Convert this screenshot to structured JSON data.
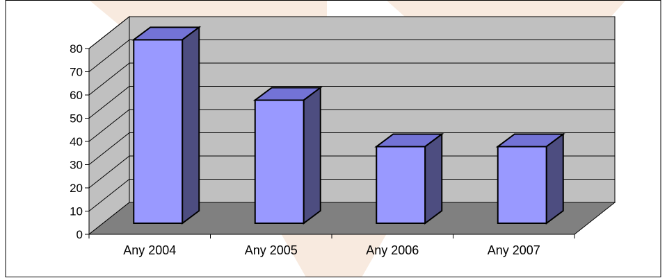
{
  "chart_data": {
    "type": "bar",
    "title": "",
    "xlabel": "",
    "ylabel": "",
    "categories": [
      "Any 2004",
      "Any 2005",
      "Any 2006",
      "Any 2007"
    ],
    "values": [
      79,
      53,
      33,
      33
    ],
    "ylim": [
      0,
      80
    ],
    "yticks": [
      0,
      10,
      20,
      30,
      40,
      50,
      60,
      70,
      80
    ],
    "grid": true,
    "legend": "none",
    "three_d": true,
    "colors": {
      "bar_front": "#9999ff",
      "bar_top": "#7373d6",
      "bar_side": "#4d4d80",
      "back_wall": "#c0c0c0",
      "side_wall": "#c0c0c0",
      "floor": "#808080",
      "watermark": "#f2d9c4"
    }
  }
}
